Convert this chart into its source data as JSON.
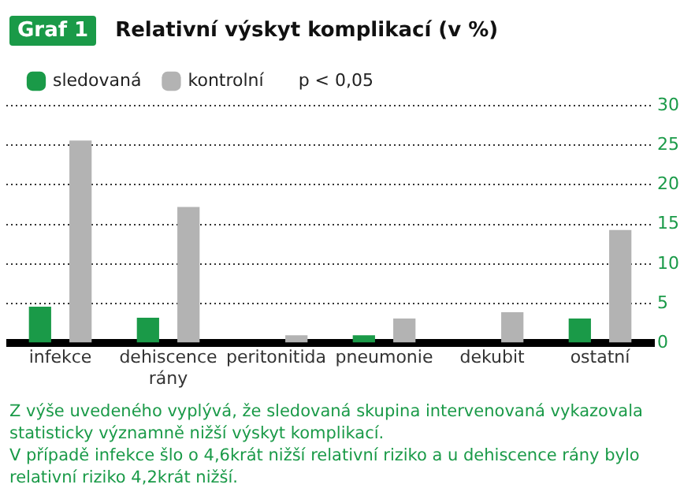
{
  "chart_data": {
    "type": "bar",
    "title": "Relativní výskyt komplikací (v %)",
    "categories": [
      "infekce",
      "dehiscence rány",
      "peritonitida",
      "pneumonie",
      "dekubit",
      "ostatní"
    ],
    "series": [
      {
        "name": "sledovaná",
        "color": "#1a9a48",
        "values": [
          4.6,
          3.2,
          0.1,
          1.0,
          0.1,
          3.1
        ]
      },
      {
        "name": "kontrolní",
        "color": "#b3b3b3",
        "values": [
          25.6,
          17.2,
          1.0,
          3.1,
          3.9,
          14.3
        ]
      }
    ],
    "ylim": [
      0,
      30
    ],
    "yticks": [
      0,
      5,
      10,
      15,
      20,
      25,
      30
    ],
    "grid": "y",
    "legend": "top left",
    "annotations": [
      "Graf 1",
      "p < 0,05",
      "Z výše uvedeného vyplývá, že sledovaná skupina intervenovaná vykazovala statisticky významně nižší výskyt komplikací.",
      "V případě infekce šlo o 4,6krát nižší relativní riziko a u dehiscence rány bylo relativní riziko 4,2krát nižší."
    ]
  }
}
